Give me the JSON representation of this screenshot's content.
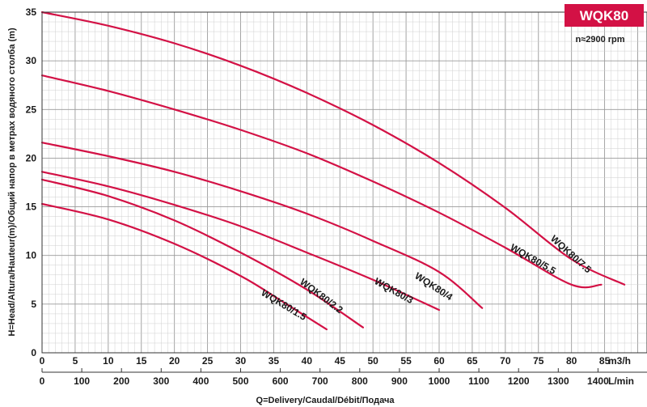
{
  "chart_data": {
    "type": "line",
    "model": "WQK80",
    "speed": "n≈2900 rpm",
    "xlabel": "Q=Delivery/Caudal/Débit/Подача",
    "ylabel": "H=Head/Altura/Hauteur(m)/Общий напор в метрах водяного столба (m)",
    "x_unit": "m3/h",
    "x2_unit": "L/min",
    "xlim": [
      0,
      90
    ],
    "ylim": [
      0,
      35
    ],
    "x_ticks": [
      0,
      5,
      10,
      15,
      20,
      25,
      30,
      35,
      40,
      45,
      50,
      55,
      60,
      65,
      70,
      75,
      80,
      85,
      90
    ],
    "x_tick_labels": [
      "0",
      "5",
      "10",
      "15",
      "20",
      "25",
      "30",
      "35",
      "40",
      "45",
      "50",
      "55",
      "60",
      "65",
      "70",
      "75",
      "80",
      "85",
      "m3/h"
    ],
    "x2_ticks": [
      0,
      100,
      200,
      300,
      400,
      500,
      600,
      700,
      800,
      900,
      1000,
      1100,
      1200,
      1300,
      1400
    ],
    "x2_tick_labels": [
      "0",
      "100",
      "200",
      "300",
      "400",
      "500",
      "600",
      "700",
      "800",
      "900",
      "1000",
      "1100",
      "1200",
      "1300",
      "1400"
    ],
    "y_ticks": [
      0,
      5,
      10,
      15,
      20,
      25,
      30,
      35
    ],
    "y_tick_labels": [
      "0",
      "5",
      "10",
      "15",
      "20",
      "25",
      "30",
      "35"
    ],
    "grid": true,
    "line_color": "#d31145",
    "badge_color": "#d31145",
    "series": [
      {
        "name": "WQK80/1.5",
        "points": [
          [
            0,
            15.3
          ],
          [
            10,
            13.7
          ],
          [
            20,
            11.2
          ],
          [
            30,
            7.9
          ],
          [
            36,
            5.4
          ],
          [
            43,
            2.4
          ]
        ]
      },
      {
        "name": "WQK80/2.2",
        "points": [
          [
            0,
            17.8
          ],
          [
            10,
            16.1
          ],
          [
            20,
            13.6
          ],
          [
            30,
            10.3
          ],
          [
            40,
            6.5
          ],
          [
            48.5,
            2.6
          ]
        ]
      },
      {
        "name": "WQK80/3",
        "points": [
          [
            0,
            18.6
          ],
          [
            10,
            17.1
          ],
          [
            20,
            15.2
          ],
          [
            30,
            13.0
          ],
          [
            40,
            10.3
          ],
          [
            50,
            7.5
          ],
          [
            60,
            4.4
          ]
        ]
      },
      {
        "name": "WQK80/4",
        "points": [
          [
            0,
            21.6
          ],
          [
            10,
            20.2
          ],
          [
            20,
            18.6
          ],
          [
            30,
            16.6
          ],
          [
            40,
            14.3
          ],
          [
            50,
            11.5
          ],
          [
            60,
            8.3
          ],
          [
            66.5,
            4.6
          ]
        ]
      },
      {
        "name": "WQK80/5.5",
        "points": [
          [
            0,
            28.5
          ],
          [
            10,
            26.9
          ],
          [
            20,
            25.0
          ],
          [
            30,
            22.9
          ],
          [
            40,
            20.5
          ],
          [
            50,
            17.6
          ],
          [
            60,
            14.4
          ],
          [
            70,
            10.8
          ],
          [
            80,
            7.0
          ],
          [
            84.5,
            7.0
          ]
        ]
      },
      {
        "name": "WQK80/7.5",
        "points": [
          [
            0,
            35.0
          ],
          [
            10,
            33.6
          ],
          [
            20,
            31.8
          ],
          [
            30,
            29.5
          ],
          [
            40,
            26.7
          ],
          [
            50,
            23.4
          ],
          [
            60,
            19.5
          ],
          [
            70,
            14.9
          ],
          [
            80,
            9.6
          ],
          [
            88,
            7.0
          ]
        ]
      }
    ]
  }
}
